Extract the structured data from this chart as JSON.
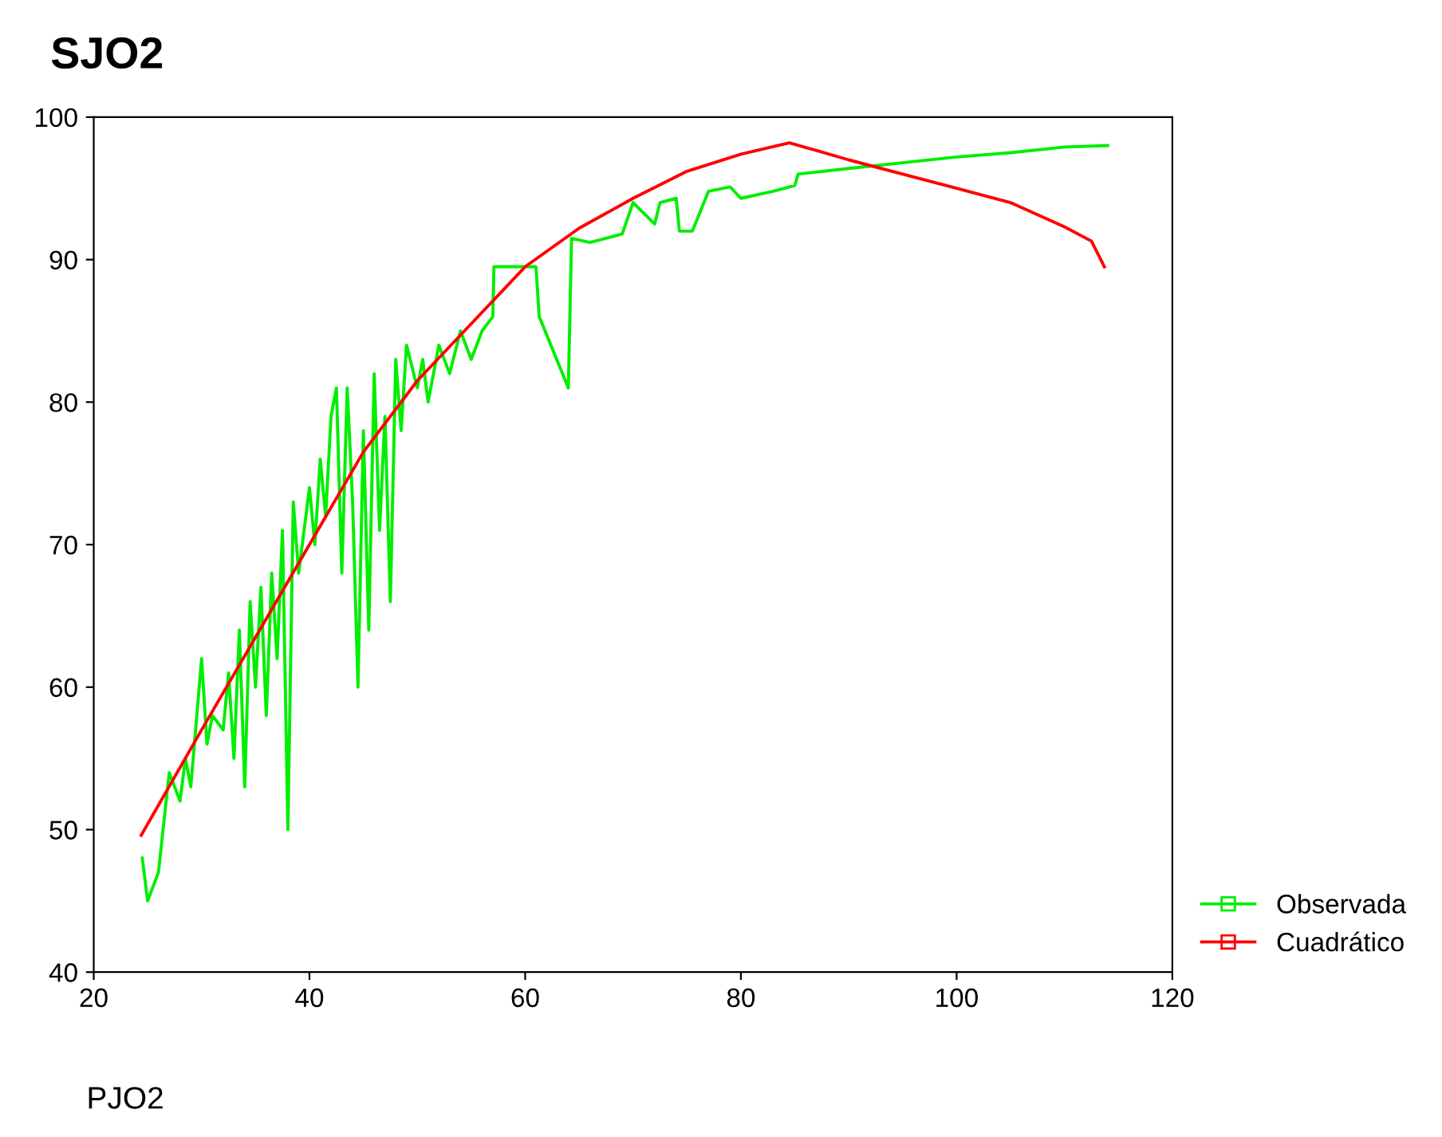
{
  "chart_data": {
    "type": "line",
    "title": "SJO2",
    "xlabel": "PJO2",
    "xlim": [
      20,
      120
    ],
    "ylim": [
      40,
      100
    ],
    "xticks": [
      20,
      40,
      60,
      80,
      100,
      120
    ],
    "yticks": [
      40,
      50,
      60,
      70,
      80,
      90,
      100
    ],
    "grid": false,
    "legend": "bottom right",
    "marker": "none",
    "line_style": "solid",
    "series": [
      {
        "name": "Observada",
        "color": "#00ee00",
        "x": [
          24.5,
          25,
          26,
          27,
          28,
          28.5,
          29,
          30,
          30.5,
          31,
          32,
          32.5,
          33,
          33.5,
          34,
          34.5,
          35,
          35.5,
          36,
          36.5,
          37,
          37.5,
          38,
          38.5,
          39,
          39.5,
          40,
          40.5,
          41,
          41.5,
          42,
          42.5,
          43,
          43.5,
          44,
          44.5,
          45,
          45.5,
          46,
          46.5,
          47,
          47.5,
          48,
          48.5,
          49,
          50,
          50.5,
          51,
          52,
          53,
          54,
          55,
          56,
          57,
          57.1,
          61,
          61.3,
          64,
          64.3,
          66,
          69,
          70,
          72,
          72.5,
          74,
          74.3,
          75.5,
          77,
          79,
          80,
          83,
          85,
          85.3,
          90,
          95,
          100,
          105,
          110,
          114
        ],
        "values": [
          48,
          45,
          47,
          54,
          52,
          55,
          53,
          62,
          56,
          58,
          57,
          61,
          55,
          64,
          53,
          66,
          60,
          67,
          58,
          68,
          62,
          71,
          50,
          73,
          68,
          71,
          74,
          70,
          76,
          72,
          79,
          81,
          68,
          81,
          73,
          60,
          78,
          64,
          82,
          71,
          79,
          66,
          83,
          78,
          84,
          81,
          83,
          80,
          84,
          82,
          85,
          83,
          85,
          86,
          89.5,
          89.5,
          86,
          81,
          91.5,
          91.2,
          91.8,
          94,
          92.5,
          94,
          94.3,
          92,
          92,
          94.8,
          95.1,
          94.3,
          94.8,
          95.2,
          96,
          96.4,
          96.8,
          97.2,
          97.5,
          97.9,
          98
        ]
      },
      {
        "name": "Cuadrático",
        "color": "#ff0000",
        "x": [
          24.4,
          30,
          35,
          40,
          45,
          50,
          55,
          60,
          65,
          70,
          75,
          80,
          84.5,
          90,
          95,
          100,
          105,
          110,
          112.5,
          113.7
        ],
        "values": [
          49.6,
          57,
          63.5,
          70,
          76.5,
          81.5,
          85.5,
          89.5,
          92.2,
          94.3,
          96.2,
          97.4,
          98.2,
          97,
          96,
          95,
          94,
          92.3,
          91.3,
          89.5
        ]
      }
    ]
  }
}
